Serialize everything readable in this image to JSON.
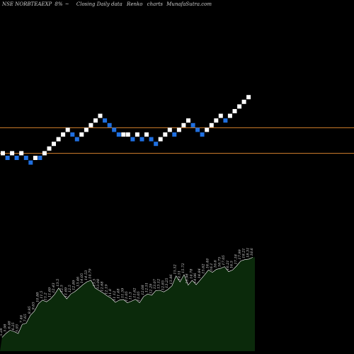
{
  "header": {
    "ticker": "NSE NORBTEAEXP",
    "change": "8%",
    "arrow": "~",
    "subtitle": "Closing Daily data",
    "chart_kind": "Renko",
    "charts_word": "charts",
    "brand": "MunafaSutra.com"
  },
  "colors": {
    "background": "#000000",
    "up_brick": "#ffffff",
    "down_brick": "#1f6fe0",
    "ref_line": "#c8792a",
    "volume_fill": "#0b2a0b",
    "volume_line": "#ffffff"
  },
  "chart_data": [
    {
      "type": "renko",
      "brick_size": 1,
      "reference_lines": [
        58,
        53
      ],
      "bricks": [
        {
          "v": 55,
          "dir": "up"
        },
        {
          "v": 54,
          "dir": "down"
        },
        {
          "v": 55,
          "dir": "up"
        },
        {
          "v": 54,
          "dir": "down"
        },
        {
          "v": 55,
          "dir": "up"
        },
        {
          "v": 54,
          "dir": "down"
        },
        {
          "v": 53,
          "dir": "down"
        },
        {
          "v": 54,
          "dir": "up"
        },
        {
          "v": 54,
          "dir": "down"
        },
        {
          "v": 55,
          "dir": "up"
        },
        {
          "v": 56,
          "dir": "up"
        },
        {
          "v": 57,
          "dir": "up"
        },
        {
          "v": 58,
          "dir": "up"
        },
        {
          "v": 59,
          "dir": "up"
        },
        {
          "v": 60,
          "dir": "up"
        },
        {
          "v": 59,
          "dir": "down"
        },
        {
          "v": 58,
          "dir": "down"
        },
        {
          "v": 59,
          "dir": "up"
        },
        {
          "v": 60,
          "dir": "up"
        },
        {
          "v": 61,
          "dir": "up"
        },
        {
          "v": 62,
          "dir": "up"
        },
        {
          "v": 63,
          "dir": "up"
        },
        {
          "v": 62,
          "dir": "down"
        },
        {
          "v": 61,
          "dir": "down"
        },
        {
          "v": 60,
          "dir": "down"
        },
        {
          "v": 59,
          "dir": "down"
        },
        {
          "v": 59,
          "dir": "up"
        },
        {
          "v": 59,
          "dir": "up"
        },
        {
          "v": 58,
          "dir": "down"
        },
        {
          "v": 59,
          "dir": "up"
        },
        {
          "v": 58,
          "dir": "down"
        },
        {
          "v": 59,
          "dir": "up"
        },
        {
          "v": 58,
          "dir": "down"
        },
        {
          "v": 57,
          "dir": "down"
        },
        {
          "v": 58,
          "dir": "up"
        },
        {
          "v": 59,
          "dir": "up"
        },
        {
          "v": 60,
          "dir": "up"
        },
        {
          "v": 59,
          "dir": "down"
        },
        {
          "v": 60,
          "dir": "up"
        },
        {
          "v": 61,
          "dir": "up"
        },
        {
          "v": 62,
          "dir": "up"
        },
        {
          "v": 61,
          "dir": "down"
        },
        {
          "v": 60,
          "dir": "down"
        },
        {
          "v": 59,
          "dir": "down"
        },
        {
          "v": 60,
          "dir": "up"
        },
        {
          "v": 61,
          "dir": "up"
        },
        {
          "v": 62,
          "dir": "up"
        },
        {
          "v": 63,
          "dir": "up"
        },
        {
          "v": 62,
          "dir": "down"
        },
        {
          "v": 63,
          "dir": "up"
        },
        {
          "v": 64,
          "dir": "up"
        },
        {
          "v": 65,
          "dir": "up"
        },
        {
          "v": 66,
          "dir": "up"
        },
        {
          "v": 67,
          "dir": "up"
        }
      ]
    },
    {
      "type": "area",
      "series": [
        {
          "values": [
            5.28,
            5.98,
            6.48,
            6.25,
            5.93,
            7.46,
            7.65,
            8.95,
            9.65,
            10.88,
            11.5,
            11.2,
            11.69,
            12.43,
            13.5,
            12.5,
            11.69,
            12.5,
            12.89,
            13.46,
            14.05,
            14.53,
            14.79,
            13.5,
            13.08,
            12.68,
            12.19,
            11.8,
            11.12,
            11.48,
            11.59,
            11.05,
            11.3,
            11.62,
            11.05,
            12.08,
            12.51,
            12.29,
            13.07,
            13.12,
            12.85,
            13.25,
            13.86,
            15.52,
            14.51,
            15.72,
            13.98,
            14.78,
            14.06,
            14.84,
            15.62,
            16.48,
            16.1,
            16.6,
            16.75,
            17.05,
            16.21,
            16.5,
            17.18,
            17.99,
            18.21,
            18.31,
            18.6
          ],
          "labels": [
            "5.28",
            "5.98",
            "6.48",
            "6.25",
            "5.93",
            "7.46",
            "7.65",
            "8.95",
            "9.65",
            "10.88",
            "11.5",
            "11.2",
            "11.69",
            "12.43",
            "13.5",
            "12.5",
            "11.69",
            "12.5",
            "12.89",
            "13.46",
            "14.05",
            "14.53",
            "14.79",
            "13.5",
            "13.08",
            "12.68",
            "12.19",
            "11.8",
            "11.12",
            "11.48",
            "11.59",
            "11.05",
            "11.3",
            "11.62",
            "11.05",
            "12.08",
            "12.51",
            "12.29",
            "13.07",
            "13.12",
            "12.85",
            "13.25",
            "13.86",
            "15.52",
            "14.51",
            "15.72",
            "13.98",
            "14.78",
            "14.06",
            "14.84",
            "15.62",
            "16.48",
            "16.1",
            "16.6",
            "16.75",
            "17.05",
            "16.21",
            "16.5",
            "17.18",
            "17.99",
            "18.21",
            "18.31",
            "18.6"
          ]
        }
      ],
      "ylim": [
        3,
        19
      ]
    }
  ]
}
